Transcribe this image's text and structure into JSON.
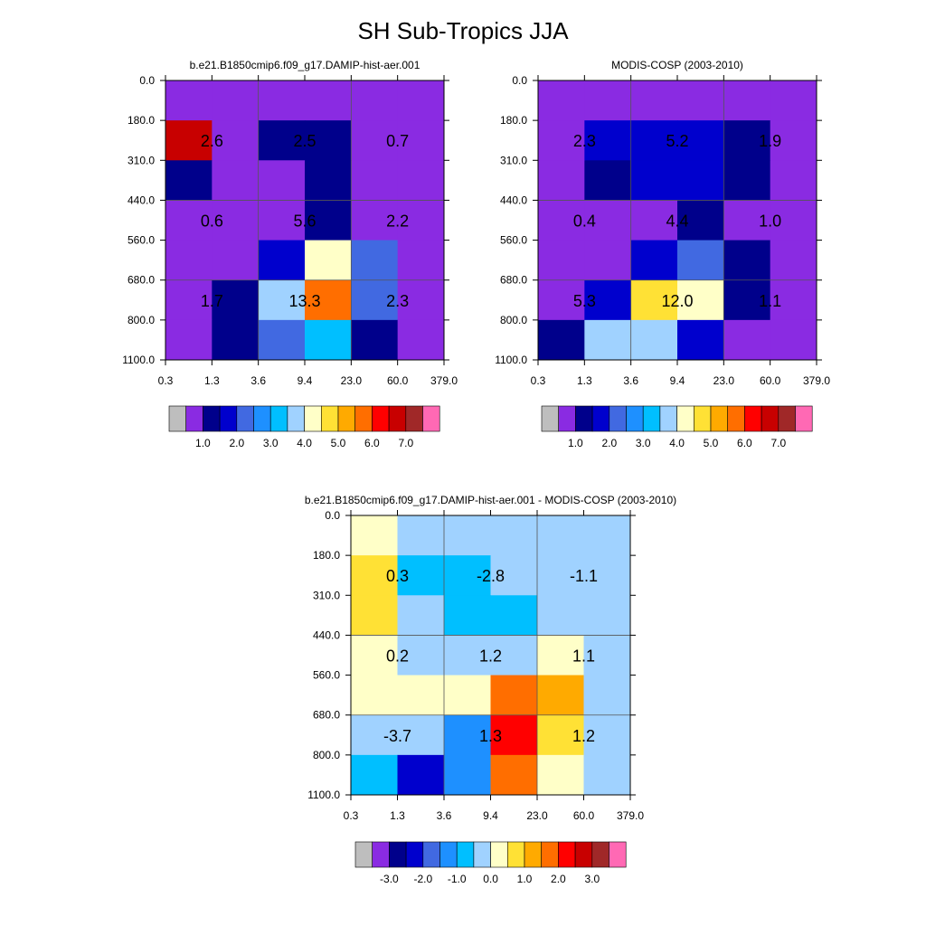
{
  "figure": {
    "title": "SH Sub-Tropics JJA"
  },
  "chart_data": [
    {
      "type": "heatmap",
      "title": "b.e21.B1850cmip6.f09_g17.DAMIP-hist-aer.001",
      "xticks": [
        "0.3",
        "1.3",
        "3.6",
        "9.4",
        "23.0",
        "60.0",
        "379.0"
      ],
      "yticks": [
        "0.0",
        "180.0",
        "310.0",
        "440.0",
        "560.0",
        "680.0",
        "800.0",
        "1100.0"
      ],
      "values": [
        [
          0.0,
          0.0,
          0.0,
          0.0,
          0.0,
          0.0
        ],
        [
          6.0,
          0.0,
          0.5,
          0.5,
          0.0,
          0.0
        ],
        [
          0.5,
          0.0,
          0.0,
          0.5,
          0.0,
          0.0
        ],
        [
          0.0,
          0.0,
          0.0,
          0.5,
          0.0,
          0.0
        ],
        [
          0.0,
          0.0,
          1.2,
          3.7,
          1.7,
          0.0
        ],
        [
          0.0,
          0.5,
          3.2,
          5.2,
          1.7,
          0.0
        ],
        [
          0.0,
          0.5,
          1.7,
          2.7,
          0.5,
          0.0
        ]
      ],
      "box_labels": [
        "2.6",
        "2.5",
        "0.7",
        "0.6",
        "5.6",
        "2.2",
        "1.7",
        "13.3",
        "2.3"
      ],
      "colorbar": {
        "labels": [
          "1.0",
          "2.0",
          "3.0",
          "4.0",
          "5.0",
          "6.0",
          "7.0"
        ]
      }
    },
    {
      "type": "heatmap",
      "title": "MODIS-COSP (2003-2010)",
      "xticks": [
        "0.3",
        "1.3",
        "3.6",
        "9.4",
        "23.0",
        "60.0",
        "379.0"
      ],
      "yticks": [
        "0.0",
        "180.0",
        "310.0",
        "440.0",
        "560.0",
        "680.0",
        "800.0",
        "1100.0"
      ],
      "values": [
        [
          0.0,
          0.0,
          0.0,
          0.0,
          0.0,
          0.0
        ],
        [
          0.0,
          1.0,
          1.0,
          1.0,
          0.5,
          0.0
        ],
        [
          0.0,
          0.5,
          1.0,
          1.0,
          0.5,
          0.0
        ],
        [
          0.0,
          0.0,
          0.0,
          0.5,
          0.0,
          0.0
        ],
        [
          0.0,
          0.0,
          1.0,
          1.7,
          0.5,
          0.0
        ],
        [
          0.0,
          1.0,
          4.2,
          3.7,
          0.5,
          0.0
        ],
        [
          0.5,
          3.2,
          3.2,
          1.0,
          0.0,
          0.0
        ]
      ],
      "box_labels": [
        "2.3",
        "5.2",
        "1.9",
        "0.4",
        "4.4",
        "1.0",
        "5.3",
        "12.0",
        "1.1"
      ],
      "colorbar": {
        "labels": [
          "1.0",
          "2.0",
          "3.0",
          "4.0",
          "5.0",
          "6.0",
          "7.0"
        ]
      }
    },
    {
      "type": "heatmap",
      "title": "b.e21.B1850cmip6.f09_g17.DAMIP-hist-aer.001 - MODIS-COSP (2003-2010)",
      "xticks": [
        "0.3",
        "1.3",
        "3.6",
        "9.4",
        "23.0",
        "60.0",
        "379.0"
      ],
      "yticks": [
        "0.0",
        "180.0",
        "310.0",
        "440.0",
        "560.0",
        "680.0",
        "800.0",
        "1100.0"
      ],
      "values": [
        [
          0.2,
          -0.2,
          -0.2,
          -0.2,
          -0.2,
          -0.2
        ],
        [
          0.7,
          -0.7,
          -0.7,
          -0.2,
          -0.2,
          -0.2
        ],
        [
          0.7,
          -0.2,
          -0.7,
          -0.7,
          -0.2,
          -0.2
        ],
        [
          0.2,
          -0.2,
          -0.2,
          -0.2,
          0.2,
          -0.2
        ],
        [
          0.2,
          0.2,
          0.2,
          1.7,
          1.2,
          -0.2
        ],
        [
          -0.2,
          -0.2,
          -1.2,
          2.2,
          0.7,
          -0.2
        ],
        [
          -0.7,
          -2.2,
          -1.2,
          1.7,
          0.2,
          -0.2
        ]
      ],
      "box_labels": [
        "0.3",
        "-2.8",
        "-1.1",
        "0.2",
        "1.2",
        "1.1",
        "-3.7",
        "1.3",
        "1.2"
      ],
      "colorbar": {
        "labels": [
          "-3.0",
          "-2.0",
          "-1.0",
          "0.0",
          "1.0",
          "2.0",
          "3.0"
        ]
      }
    }
  ],
  "colors": {
    "main_scale": [
      "#bebebe",
      "#8a2be2",
      "#00008b",
      "#0000cd",
      "#4169e1",
      "#1e90ff",
      "#00bfff",
      "#a0d2ff",
      "#ffffc8",
      "#ffe135",
      "#ffaa00",
      "#ff6e00",
      "#ff0000",
      "#c80000",
      "#a02828",
      "#ff69b4"
    ],
    "main_edges": [
      0.0,
      0.5,
      1.0,
      1.5,
      2.0,
      2.5,
      3.0,
      3.5,
      4.0,
      4.5,
      5.0,
      5.5,
      6.0,
      6.5,
      7.0
    ],
    "diff_scale": [
      "#bebebe",
      "#8a2be2",
      "#00008b",
      "#0000cd",
      "#4169e1",
      "#1e90ff",
      "#00bfff",
      "#a0d2ff",
      "#ffffc8",
      "#ffe135",
      "#ffaa00",
      "#ff6e00",
      "#ff0000",
      "#c80000",
      "#a02828",
      "#ff69b4"
    ],
    "diff_edges": [
      -3.5,
      -3.0,
      -2.5,
      -2.0,
      -1.5,
      -1.0,
      -0.5,
      0.0,
      0.5,
      1.0,
      1.5,
      2.0,
      2.5,
      3.0,
      3.5
    ]
  }
}
